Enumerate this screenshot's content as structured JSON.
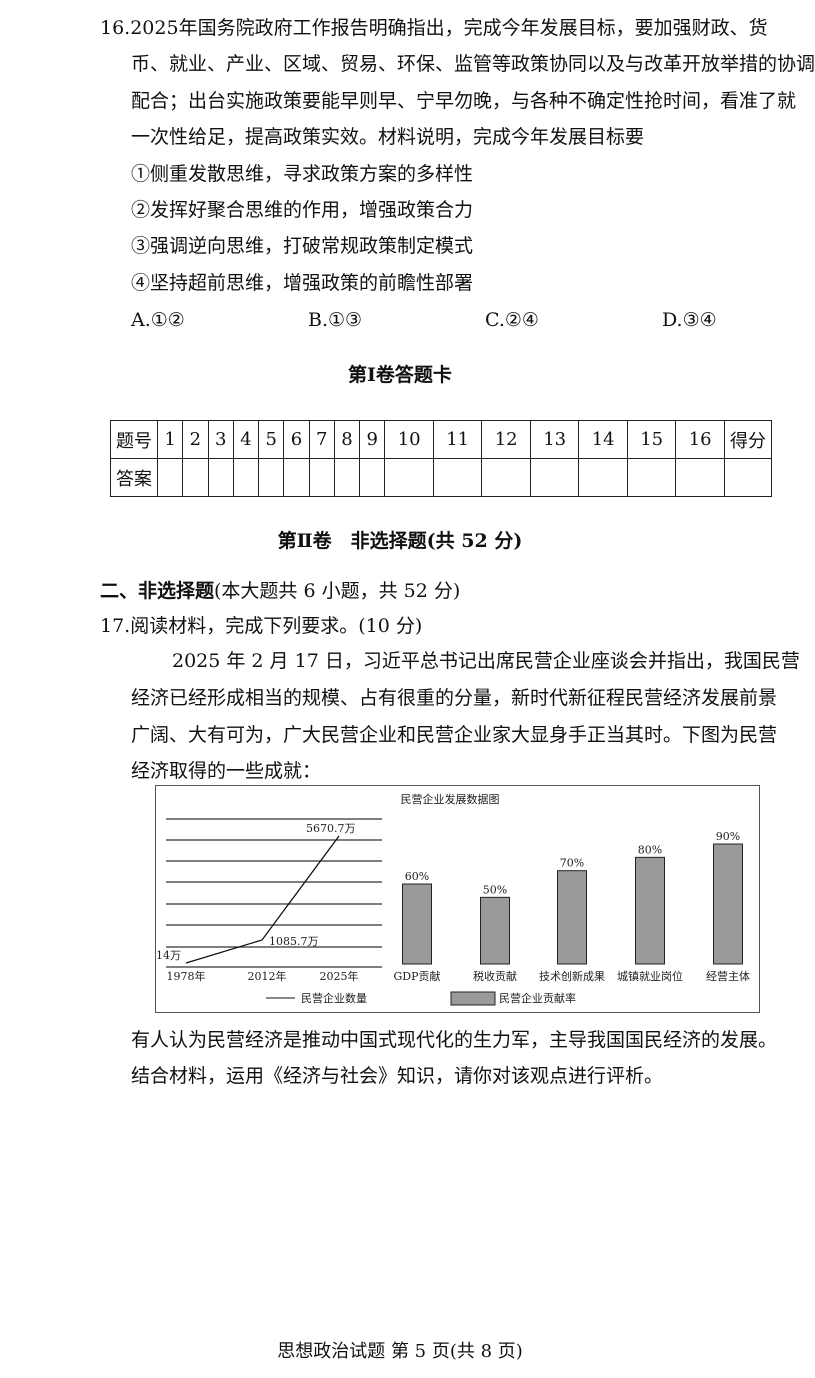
{
  "q16": {
    "lines": [
      "16.2025年国务院政府工作报告明确指出，完成今年发展目标，要加强财政、货",
      "币、就业、产业、区域、贸易、环保、监管等政策协同以及与改革开放举措的协调",
      "配合；出台实施政策要能早则早、宁早勿晚，与各种不确定性抢时间，看准了就",
      "一次性给足，提高政策实效。材料说明，完成今年发展目标要"
    ],
    "items": [
      "①侧重发散思维，寻求政策方案的多样性",
      "②发挥好聚合思维的作用，增强政策合力",
      "③强调逆向思维，打破常规政策制定模式",
      "④坚持超前思维，增强政策的前瞻性部署"
    ],
    "choices": [
      "A.①②",
      "B.①③",
      "C.②④",
      "D.③④"
    ]
  },
  "answer_card": {
    "title": "第Ⅰ卷答题卡",
    "row1_label": "题号",
    "row2_label": "答案",
    "numbers": [
      "1",
      "2",
      "3",
      "4",
      "5",
      "6",
      "7",
      "8",
      "9",
      "10",
      "11",
      "12",
      "13",
      "14",
      "15",
      "16"
    ],
    "score_label": "得分"
  },
  "part2": {
    "title": "第Ⅱ卷　非选择题(共 52 分)",
    "section": "二、非选择题",
    "section_note": "(本大题共 6 小题，共 52 分)"
  },
  "q17": {
    "heading": "17.阅读材料，完成下列要求。(10 分)",
    "para": [
      "2025 年 2 月 17 日，习近平总书记出席民营企业座谈会并指出，我国民营",
      "经济已经形成相当的规模、占有很重的分量，新时代新征程民营经济发展前景",
      "广阔、大有可为，广大民营企业和民营企业家大显身手正当其时。下图为民营",
      "经济取得的一些成就："
    ],
    "question": [
      "有人认为民营经济是推动中国式现代化的生力军，主导我国国民经济的发展。",
      "结合材料，运用《经济与社会》知识，请你对该观点进行评析。"
    ]
  },
  "chart_data": {
    "title": "民营企业发展数据图",
    "line": {
      "type": "line",
      "name": "民营企业数量",
      "categories": [
        "1978年",
        "2012年",
        "2025年"
      ],
      "values": [
        14,
        1085.7,
        5670.7
      ],
      "labels": [
        "14万",
        "1085.7万",
        "5670.7万"
      ],
      "grid": true
    },
    "bar": {
      "type": "bar",
      "name": "民营企业贡献率",
      "categories": [
        "GDP贡献",
        "税收贡献",
        "技术创新成果",
        "城镇就业岗位",
        "经营主体"
      ],
      "values": [
        60,
        50,
        70,
        80,
        90
      ],
      "labels": [
        "60%",
        "50%",
        "70%",
        "80%",
        "90%"
      ],
      "color": "#9a9a9a"
    },
    "legend": "bottom"
  },
  "footer": "思想政治试题 第 5 页(共 8 页)"
}
